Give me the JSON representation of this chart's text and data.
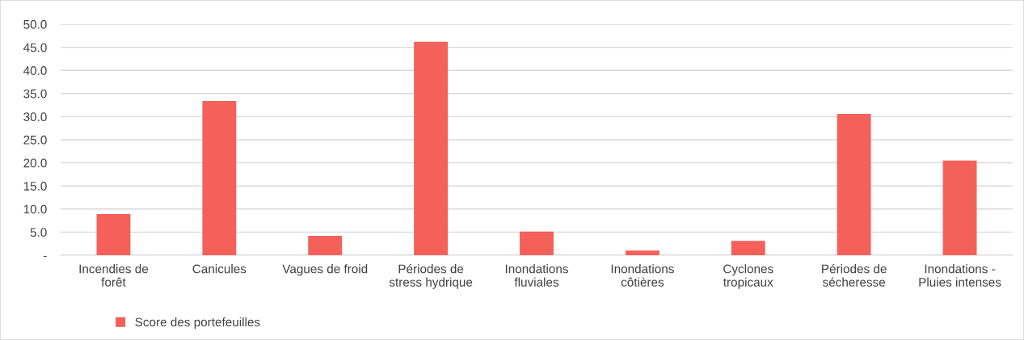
{
  "chart_data": {
    "type": "bar",
    "categories": [
      "Incendies de\nforêt",
      "Canicules",
      "Vagues de froid",
      "Périodes de\nstress hydrique",
      "Inondations\nfluviales",
      "Inondations\ncôtières",
      "Cyclones\ntropicaux",
      "Périodes de\nsécheresse",
      "Inondations -\nPluies intenses"
    ],
    "series": [
      {
        "name": "Score des portefeuilles",
        "color": "#f4605a",
        "values": [
          8.9,
          33.4,
          4.2,
          46.2,
          5.1,
          1.0,
          3.1,
          30.6,
          20.5
        ]
      }
    ],
    "ylim": [
      0,
      50
    ],
    "yticks": [
      {
        "value": 0,
        "label": "-"
      },
      {
        "value": 5,
        "label": "5.0"
      },
      {
        "value": 10,
        "label": "10.0"
      },
      {
        "value": 15,
        "label": "15.0"
      },
      {
        "value": 20,
        "label": "20.0"
      },
      {
        "value": 25,
        "label": "25.0"
      },
      {
        "value": 30,
        "label": "30.0"
      },
      {
        "value": 35,
        "label": "35.0"
      },
      {
        "value": 40,
        "label": "40.0"
      },
      {
        "value": 45,
        "label": "45.0"
      },
      {
        "value": 50,
        "label": "50.0"
      }
    ],
    "grid": "y",
    "legend": "bottom left"
  }
}
